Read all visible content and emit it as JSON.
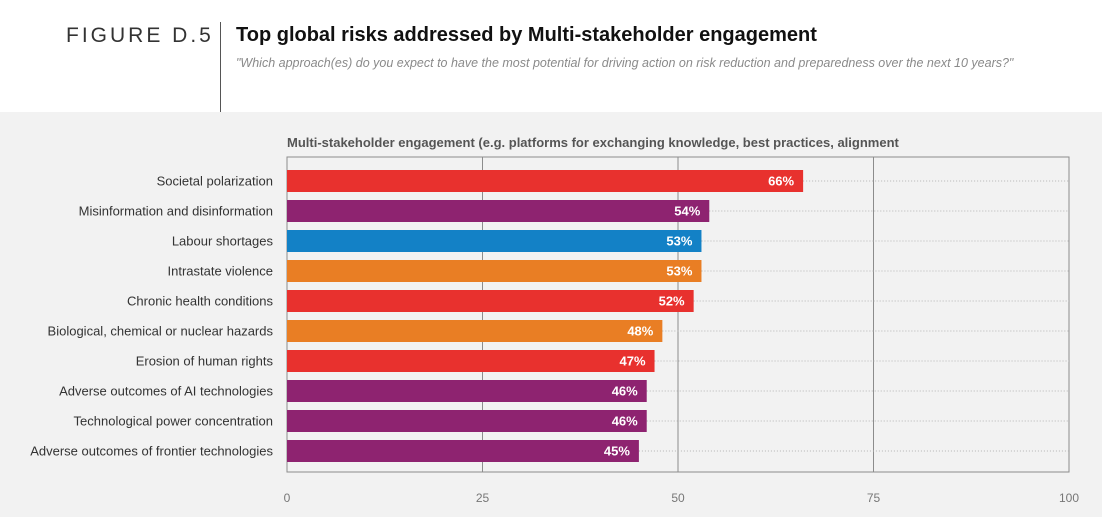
{
  "figure": {
    "label": "FIGURE D.5",
    "title": "Top global risks addressed by Multi-stakeholder engagement",
    "subtitle": "\"Which approach(es) do you expect to have the most potential for driving action on risk reduction and preparedness over the next 10 years?\""
  },
  "chart_data": {
    "type": "bar",
    "orientation": "horizontal",
    "title": "Multi-stakeholder engagement (e.g. platforms for exchanging knowledge, best practices, alignment",
    "xlim": [
      0,
      100
    ],
    "xticks": [
      0,
      25,
      50,
      75,
      100
    ],
    "grid": true,
    "categories": [
      "Societal polarization",
      "Misinformation and disinformation",
      "Labour shortages",
      "Intrastate violence",
      "Chronic health conditions",
      "Biological, chemical or nuclear hazards",
      "Erosion of human rights",
      "Adverse outcomes of AI technologies",
      "Technological power concentration",
      "Adverse outcomes of frontier technologies"
    ],
    "values": [
      66,
      54,
      53,
      53,
      52,
      48,
      47,
      46,
      46,
      45
    ],
    "value_labels": [
      "66%",
      "54%",
      "53%",
      "53%",
      "52%",
      "48%",
      "47%",
      "46%",
      "46%",
      "45%"
    ],
    "colors": [
      "#e8312e",
      "#8e2370",
      "#1381c6",
      "#e97e24",
      "#e8312e",
      "#e97e24",
      "#e8312e",
      "#8e2370",
      "#8e2370",
      "#8e2370"
    ]
  }
}
